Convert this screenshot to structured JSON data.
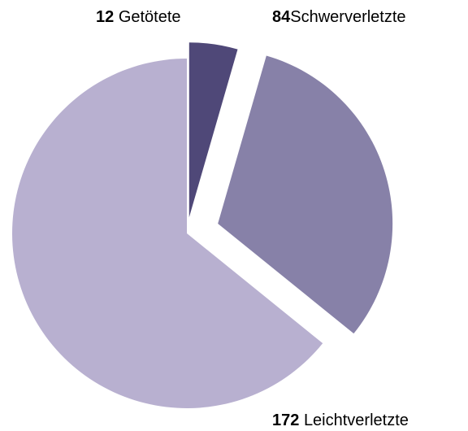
{
  "chart_data": {
    "type": "pie",
    "categories": [
      "Getötete",
      "Schwerverletzte",
      "Leichtverletzte"
    ],
    "values": [
      12,
      84,
      172
    ],
    "colors": [
      "#4f4878",
      "#8781a8",
      "#b8b0d0"
    ]
  }
}
